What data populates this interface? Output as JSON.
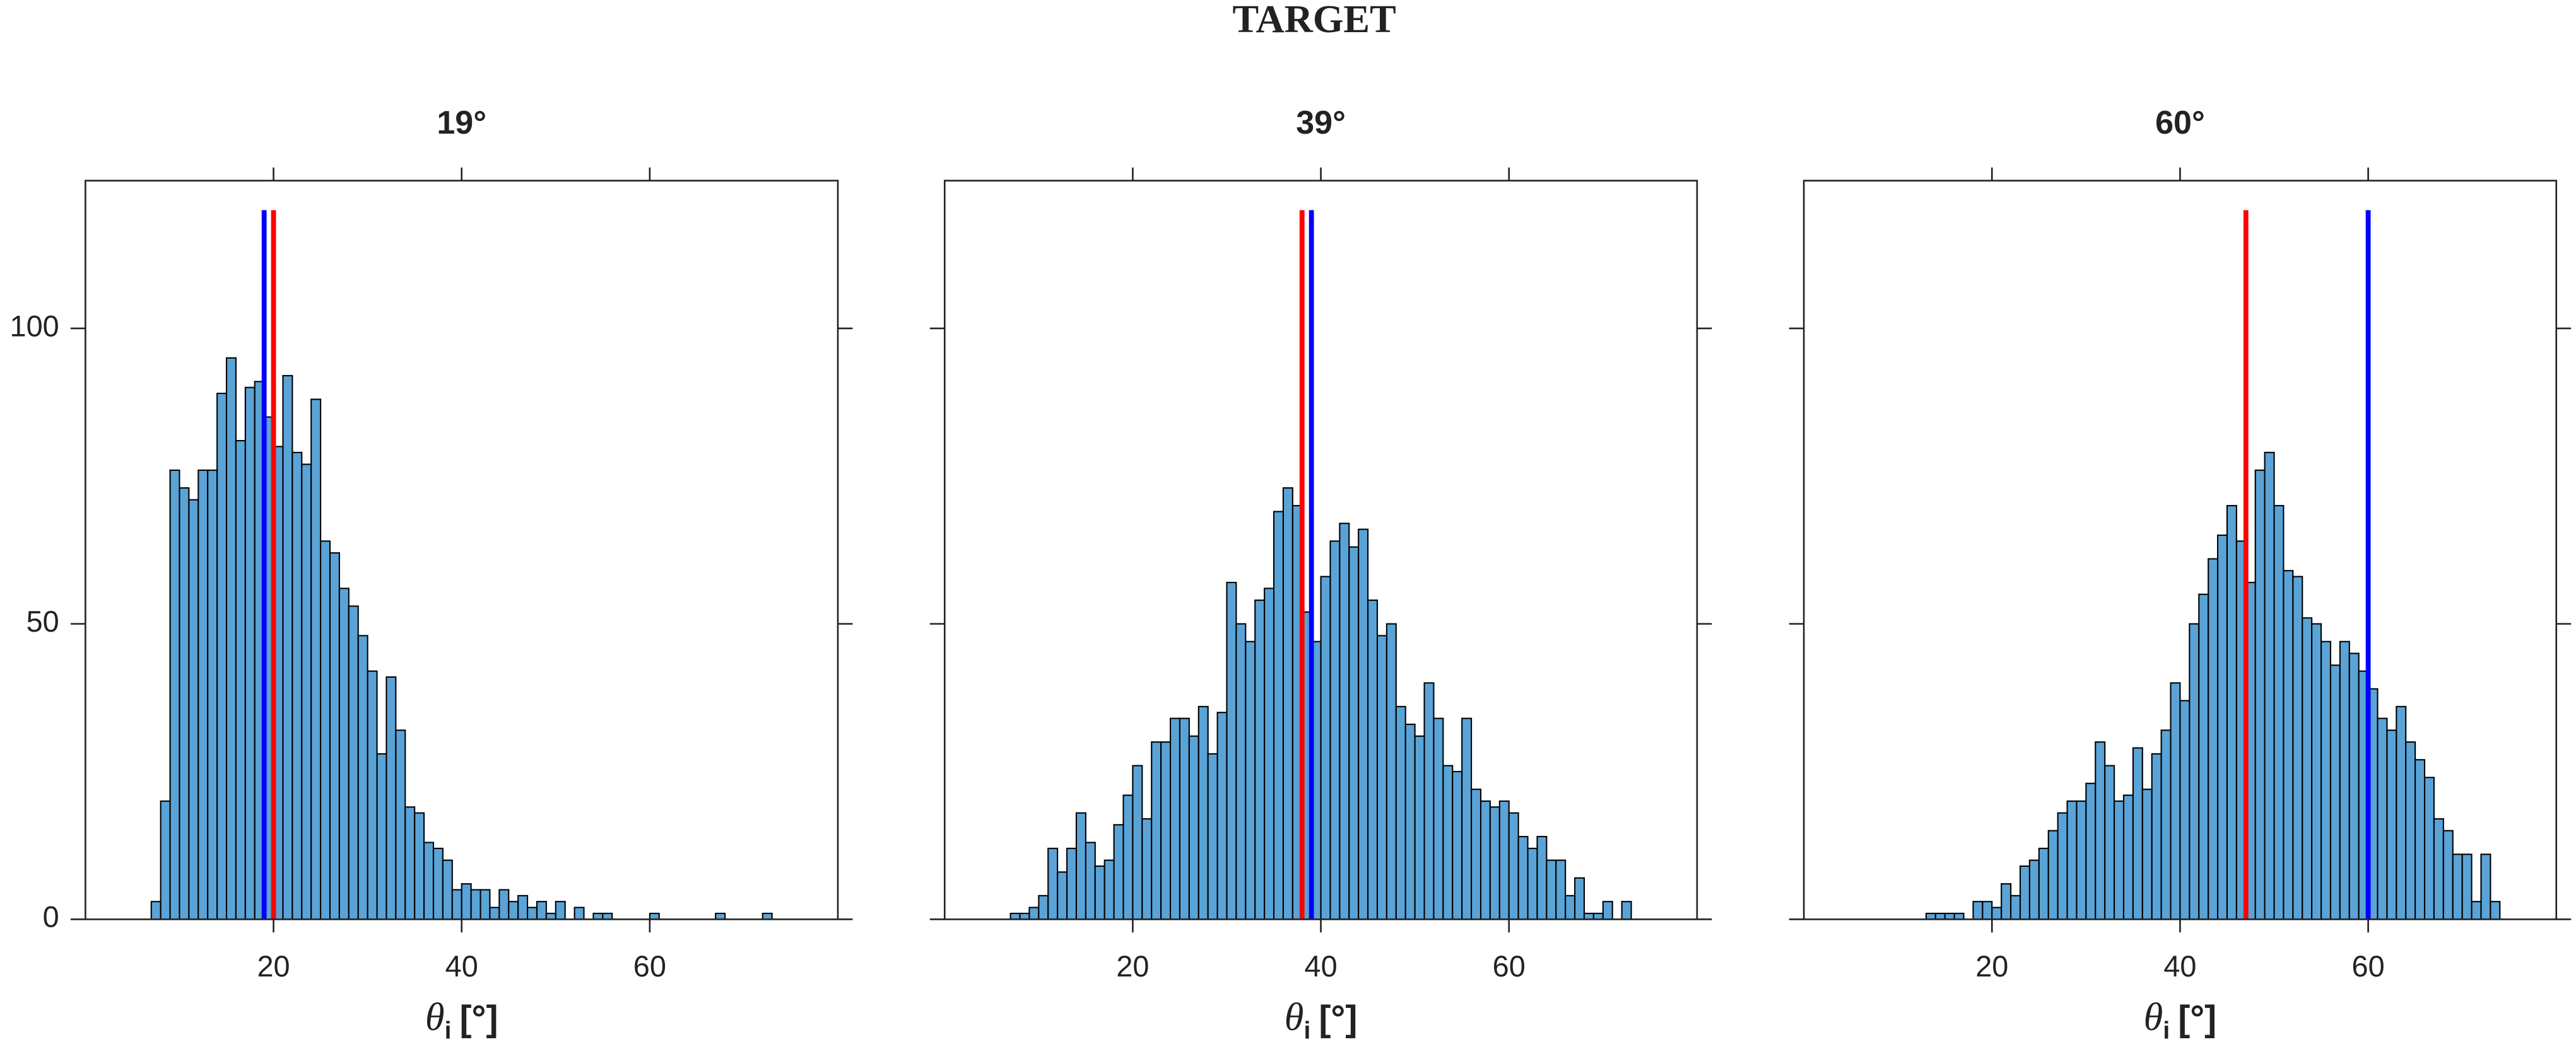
{
  "title": "TARGET",
  "chart_data": [
    {
      "type": "histogram",
      "title": "19°",
      "xlabel": "θ",
      "xlabel_subscript": "i",
      "xlabel_unit": "[°]",
      "xlim": [
        0,
        80
      ],
      "ylim": [
        0,
        125
      ],
      "xticks": [
        20,
        40,
        60
      ],
      "yticks": [
        0,
        50,
        100
      ],
      "show_yticklabels": true,
      "color": "#5aa3d6",
      "edgecolor": "#000000",
      "bins": [
        7,
        8,
        9,
        10,
        11,
        12,
        13,
        14,
        15,
        16,
        17,
        18,
        19,
        20,
        21,
        22,
        23,
        24,
        25,
        26,
        27,
        28,
        29,
        30,
        31,
        32,
        33,
        34,
        35,
        36,
        37,
        38,
        39,
        40,
        41,
        42,
        43,
        44,
        45,
        46,
        47,
        48,
        49,
        50,
        51,
        52,
        53,
        54,
        55,
        56,
        57,
        58,
        59,
        60,
        61,
        62,
        63,
        64,
        65,
        66,
        67,
        68,
        69,
        70,
        71,
        72,
        73,
        74
      ],
      "values": [
        3,
        20,
        76,
        73,
        71,
        76,
        76,
        89,
        95,
        81,
        90,
        91,
        85,
        80,
        92,
        79,
        77,
        88,
        64,
        62,
        56,
        53,
        48,
        42,
        28,
        41,
        32,
        19,
        18,
        13,
        12,
        10,
        5,
        6,
        5,
        5,
        2,
        5,
        3,
        4,
        2,
        3,
        1,
        3,
        0,
        2,
        0,
        1,
        1,
        0,
        0,
        0,
        0,
        1,
        0,
        0,
        0,
        0,
        0,
        0,
        1,
        0,
        0,
        0,
        0,
        1,
        0
      ],
      "vlines": [
        {
          "x": 19,
          "ymax": 120,
          "color": "#0000ff"
        },
        {
          "x": 20,
          "ymax": 120,
          "color": "#ff0000"
        }
      ]
    },
    {
      "type": "histogram",
      "title": "39°",
      "xlabel": "θ",
      "xlabel_subscript": "i",
      "xlabel_unit": "[°]",
      "xlim": [
        0,
        80
      ],
      "ylim": [
        0,
        125
      ],
      "xticks": [
        20,
        40,
        60
      ],
      "yticks": [
        0,
        50,
        100
      ],
      "show_yticklabels": false,
      "color": "#5aa3d6",
      "edgecolor": "#000000",
      "bins": [
        7,
        8,
        9,
        10,
        11,
        12,
        13,
        14,
        15,
        16,
        17,
        18,
        19,
        20,
        21,
        22,
        23,
        24,
        25,
        26,
        27,
        28,
        29,
        30,
        31,
        32,
        33,
        34,
        35,
        36,
        37,
        38,
        39,
        40,
        41,
        42,
        43,
        44,
        45,
        46,
        47,
        48,
        49,
        50,
        51,
        52,
        53,
        54,
        55,
        56,
        57,
        58,
        59,
        60,
        61,
        62,
        63,
        64,
        65,
        66,
        67,
        68,
        69,
        70,
        71,
        72,
        73,
        74
      ],
      "values": [
        1,
        1,
        2,
        4,
        12,
        8,
        12,
        18,
        13,
        9,
        10,
        16,
        21,
        26,
        17,
        30,
        30,
        34,
        34,
        31,
        36,
        28,
        35,
        57,
        50,
        47,
        54,
        56,
        69,
        73,
        70,
        52,
        47,
        58,
        64,
        67,
        63,
        66,
        54,
        48,
        50,
        36,
        33,
        31,
        40,
        34,
        26,
        25,
        34,
        22,
        20,
        19,
        20,
        18,
        14,
        12,
        14,
        10,
        10,
        4,
        7,
        1,
        1,
        3,
        0,
        3,
        0
      ],
      "vlines": [
        {
          "x": 38,
          "ymax": 120,
          "color": "#ff0000"
        },
        {
          "x": 39,
          "ymax": 120,
          "color": "#0000ff"
        }
      ]
    },
    {
      "type": "histogram",
      "title": "60°",
      "xlabel": "θ",
      "xlabel_subscript": "i",
      "xlabel_unit": "[°]",
      "xlim": [
        0,
        80
      ],
      "ylim": [
        0,
        125
      ],
      "xticks": [
        20,
        40,
        60
      ],
      "yticks": [
        0,
        50,
        100
      ],
      "show_yticklabels": false,
      "color": "#5aa3d6",
      "edgecolor": "#000000",
      "bins": [
        7,
        8,
        9,
        10,
        11,
        12,
        13,
        14,
        15,
        16,
        17,
        18,
        19,
        20,
        21,
        22,
        23,
        24,
        25,
        26,
        27,
        28,
        29,
        30,
        31,
        32,
        33,
        34,
        35,
        36,
        37,
        38,
        39,
        40,
        41,
        42,
        43,
        44,
        45,
        46,
        47,
        48,
        49,
        50,
        51,
        52,
        53,
        54,
        55,
        56,
        57,
        58,
        59,
        60,
        61,
        62,
        63,
        64,
        65,
        66,
        67,
        68,
        69,
        70,
        71,
        72,
        73,
        74
      ],
      "values": [
        0,
        0,
        0,
        0,
        0,
        0,
        1,
        1,
        1,
        1,
        0,
        3,
        3,
        2,
        6,
        4,
        9,
        10,
        12,
        15,
        18,
        20,
        20,
        23,
        30,
        26,
        20,
        21,
        29,
        22,
        28,
        32,
        40,
        37,
        50,
        55,
        61,
        65,
        70,
        64,
        57,
        76,
        79,
        70,
        59,
        58,
        51,
        50,
        47,
        43,
        47,
        45,
        42,
        39,
        34,
        32,
        36,
        30,
        27,
        24,
        17,
        15,
        11,
        11,
        3,
        11,
        3
      ],
      "vlines": [
        {
          "x": 47,
          "ymax": 120,
          "color": "#ff0000"
        },
        {
          "x": 60,
          "ymax": 120,
          "color": "#0000ff"
        }
      ]
    }
  ]
}
